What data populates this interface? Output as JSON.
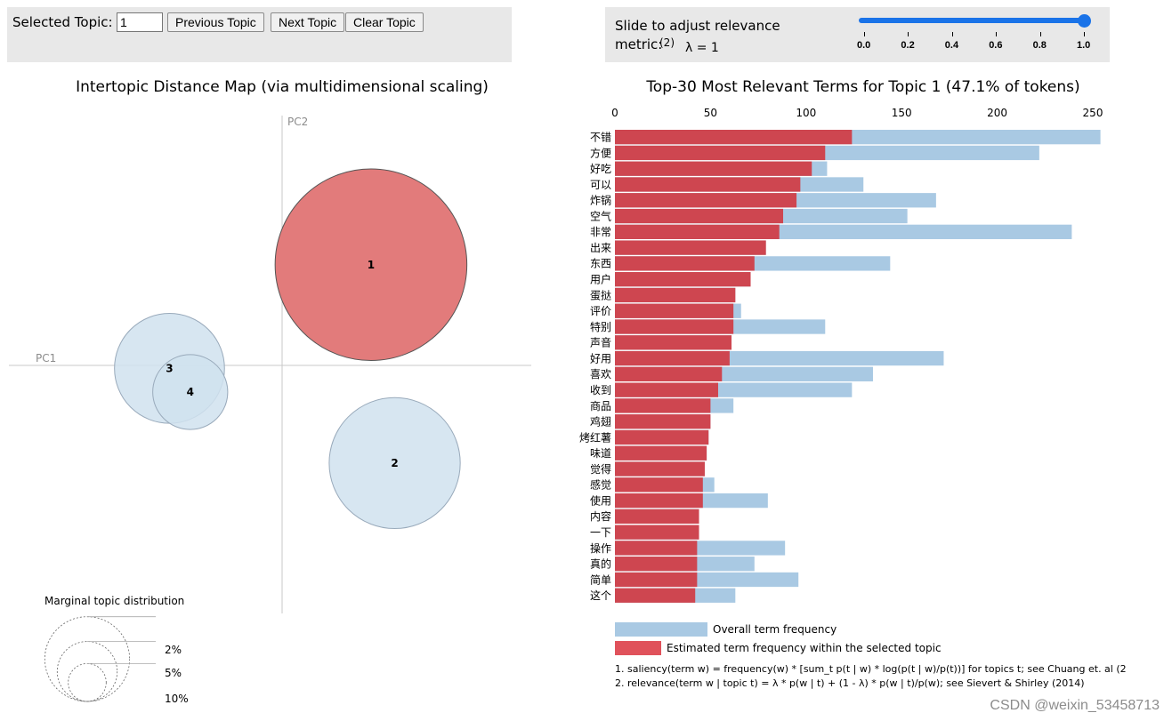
{
  "controls": {
    "selected_topic_label": "Selected Topic:",
    "selected_topic_value": "1",
    "prev_label": "Previous Topic",
    "next_label": "Next Topic",
    "clear_label": "Clear Topic",
    "slider_label_line1": "Slide to adjust relevance",
    "slider_label_line2": "metric:",
    "slider_superscript": "(2)",
    "lambda_text": "λ = 1",
    "slider_value": 1.0,
    "slider_ticks": [
      "0.0",
      "0.2",
      "0.4",
      "0.6",
      "0.8",
      "1.0"
    ]
  },
  "colors": {
    "topic_fill": "#d0e2ef",
    "topic_selected": "#e27b7b",
    "bar_overall": "#a9c9e3",
    "bar_topic": "#ce4650",
    "slider": "#1a73e8"
  },
  "watermark": "CSDN @weixin_53458713",
  "chart_data": [
    {
      "type": "scatter",
      "title": "Intertopic Distance Map (via multidimensional scaling)",
      "xlabel": "PC1",
      "ylabel": "PC2",
      "topics": [
        {
          "id": "1",
          "pc1": 0.3,
          "pc2": 0.34,
          "share": 47.1,
          "selected": true
        },
        {
          "id": "2",
          "pc1": 0.38,
          "pc2": -0.33,
          "share": 22.0,
          "selected": false
        },
        {
          "id": "3",
          "pc1": -0.38,
          "pc2": -0.01,
          "share": 15.5,
          "selected": false
        },
        {
          "id": "4",
          "pc1": -0.31,
          "pc2": -0.09,
          "share": 7.2,
          "selected": false
        }
      ],
      "legend": {
        "title": "Marginal topic distribution",
        "items": [
          {
            "label": "2%",
            "value": 2
          },
          {
            "label": "5%",
            "value": 5
          },
          {
            "label": "10%",
            "value": 10
          }
        ]
      }
    },
    {
      "type": "bar",
      "title": "Top-30 Most Relevant Terms for Topic 1 (47.1% of tokens)",
      "xlim": [
        0,
        250
      ],
      "xticks": [
        "0",
        "50",
        "100",
        "150",
        "200",
        "250"
      ],
      "categories": [
        "不错",
        "方便",
        "好吃",
        "可以",
        "炸锅",
        "空气",
        "非常",
        "出来",
        "东西",
        "用户",
        "蛋挞",
        "评价",
        "特别",
        "声音",
        "好用",
        "喜欢",
        "收到",
        "商品",
        "鸡翅",
        "烤红薯",
        "味道",
        "觉得",
        "感觉",
        "使用",
        "内容",
        "一下",
        "操作",
        "真的",
        "简单",
        "这个"
      ],
      "series": [
        {
          "name": "Overall term frequency",
          "values": [
            254,
            222,
            111,
            130,
            168,
            153,
            239,
            79,
            144,
            71,
            63,
            66,
            110,
            61,
            172,
            135,
            124,
            62,
            50,
            49,
            48,
            47,
            52,
            80,
            44,
            44,
            89,
            73,
            96,
            63
          ]
        },
        {
          "name": "Estimated term frequency within the selected topic",
          "values": [
            124,
            110,
            103,
            97,
            95,
            88,
            86,
            79,
            73,
            71,
            63,
            62,
            62,
            61,
            60,
            56,
            54,
            50,
            50,
            49,
            48,
            47,
            46,
            46,
            44,
            44,
            43,
            43,
            43,
            42
          ]
        }
      ],
      "legend_items": [
        "Overall term frequency",
        "Estimated term frequency within the selected topic"
      ],
      "footnotes": [
        "1. saliency(term w) = frequency(w) * [sum_t p(t | w) * log(p(t | w)/p(t))] for topics t; see Chuang et. al (2",
        "2. relevance(term w | topic t) = λ * p(w | t) + (1 - λ) * p(w | t)/p(w); see Sievert & Shirley (2014)"
      ]
    }
  ]
}
